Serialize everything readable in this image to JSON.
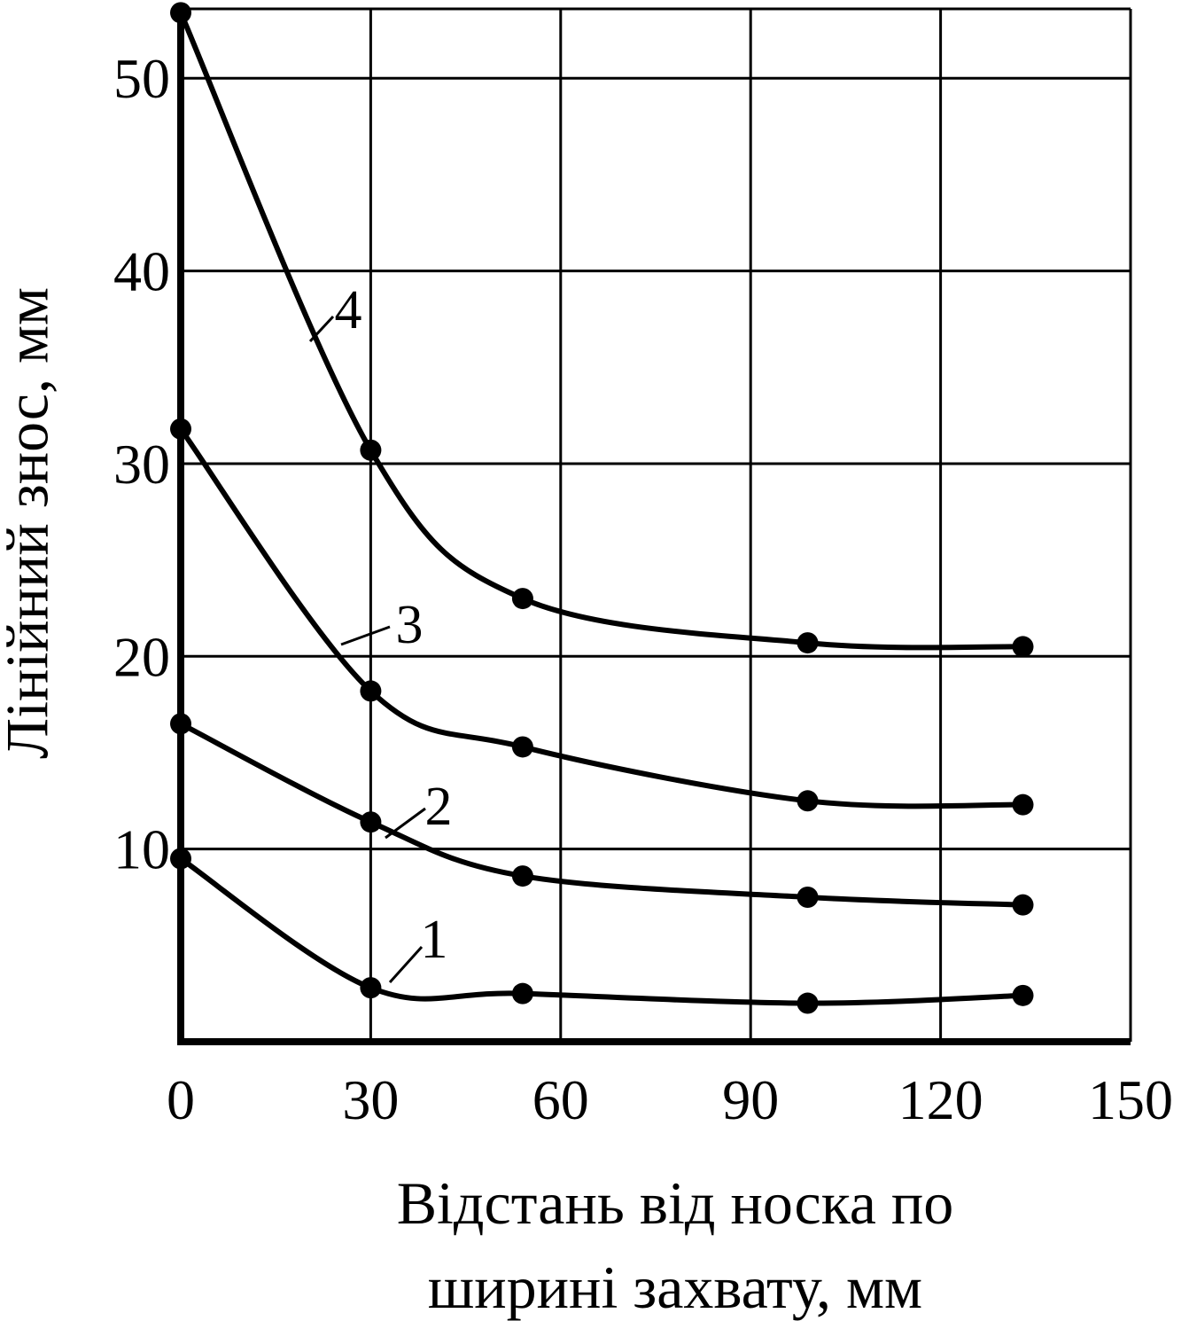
{
  "chart_data": {
    "type": "line",
    "y_label": "Лінійний знос, мм",
    "x_label_lines": [
      "Відстань від носка по",
      "ширині захвату, мм"
    ],
    "x": [
      0,
      30,
      54,
      99,
      133
    ],
    "series": [
      {
        "name": "1",
        "color": "#000000",
        "values": [
          9.5,
          2.8,
          2.5,
          2.0,
          2.4
        ]
      },
      {
        "name": "2",
        "color": "#000000",
        "values": [
          16.5,
          11.4,
          8.6,
          7.5,
          7.1
        ]
      },
      {
        "name": "3",
        "color": "#000000",
        "values": [
          31.8,
          18.2,
          15.3,
          12.5,
          12.3
        ]
      },
      {
        "name": "4",
        "color": "#000000",
        "values": [
          53.4,
          30.7,
          23.0,
          20.7,
          20.5
        ]
      }
    ],
    "xlim": [
      0,
      150
    ],
    "xticks": [
      0,
      30,
      60,
      90,
      120,
      150
    ],
    "ylim": [
      0,
      53.6
    ],
    "yticks": [
      10,
      20,
      30,
      40,
      50
    ],
    "grid": true
  }
}
